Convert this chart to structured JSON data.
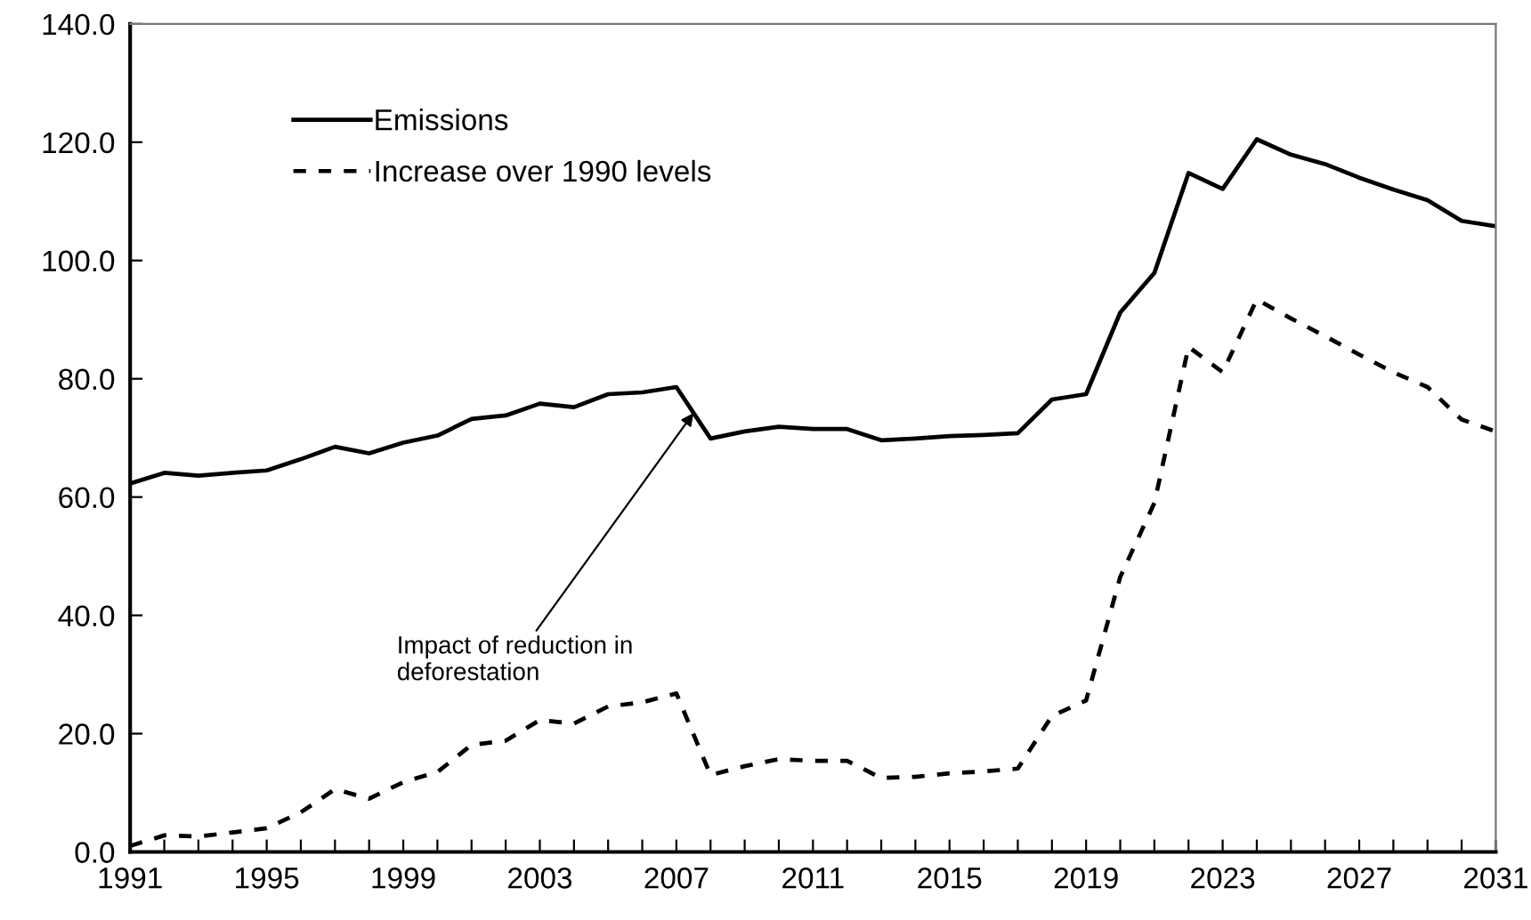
{
  "chart_data": {
    "type": "line",
    "x": [
      1991,
      1992,
      1993,
      1994,
      1995,
      1996,
      1997,
      1998,
      1999,
      2000,
      2001,
      2002,
      2003,
      2004,
      2005,
      2006,
      2007,
      2008,
      2009,
      2010,
      2011,
      2012,
      2013,
      2014,
      2015,
      2016,
      2017,
      2018,
      2019,
      2020,
      2021,
      2022,
      2023,
      2024,
      2025,
      2026,
      2027,
      2028,
      2029,
      2030,
      2031
    ],
    "series": [
      {
        "name": "Emissions",
        "color": "#000000",
        "line_style": "solid",
        "values": [
          62.3,
          64.1,
          63.6,
          64.1,
          64.5,
          66.4,
          68.5,
          67.4,
          69.2,
          70.4,
          73.2,
          73.8,
          75.8,
          75.2,
          77.4,
          77.7,
          78.6,
          69.9,
          71.1,
          71.9,
          71.5,
          71.5,
          69.6,
          69.9,
          70.3,
          70.5,
          70.8,
          76.5,
          77.4,
          91.2,
          97.9,
          114.8,
          112.1,
          120.5,
          117.9,
          116.3,
          114.0,
          112.0,
          110.2,
          106.7,
          105.8
        ]
      },
      {
        "name": "Increase over 1990 levels",
        "color": "#000000",
        "line_style": "dashed",
        "values": [
          1.0,
          2.8,
          2.6,
          3.3,
          4.0,
          6.7,
          10.6,
          9.0,
          11.8,
          13.5,
          18.1,
          18.8,
          22.3,
          21.7,
          24.6,
          25.3,
          26.8,
          13.0,
          14.5,
          15.7,
          15.4,
          15.4,
          12.5,
          12.7,
          13.3,
          13.6,
          14.1,
          23.0,
          25.6,
          46.5,
          59.0,
          85.4,
          81.1,
          93.4,
          90.2,
          87.2,
          84.1,
          81.1,
          78.6,
          73.1,
          71.1
        ]
      }
    ],
    "xlim": [
      1991,
      2031
    ],
    "xticks": [
      1991,
      {
        "value": 1992,
        "label": null
      },
      {
        "value": 1993,
        "label": null
      },
      {
        "value": 1994,
        "label": null
      },
      1995,
      {
        "value": 1996,
        "label": null
      },
      {
        "value": 1997,
        "label": null
      },
      {
        "value": 1998,
        "label": null
      },
      1999,
      {
        "value": 2000,
        "label": null
      },
      {
        "value": 2001,
        "label": null
      },
      {
        "value": 2002,
        "label": null
      },
      2003,
      {
        "value": 2004,
        "label": null
      },
      {
        "value": 2005,
        "label": null
      },
      {
        "value": 2006,
        "label": null
      },
      2007,
      {
        "value": 2008,
        "label": null
      },
      {
        "value": 2009,
        "label": null
      },
      {
        "value": 2010,
        "label": null
      },
      2011,
      {
        "value": 2012,
        "label": null
      },
      {
        "value": 2013,
        "label": null
      },
      {
        "value": 2014,
        "label": null
      },
      2015,
      {
        "value": 2016,
        "label": null
      },
      {
        "value": 2017,
        "label": null
      },
      {
        "value": 2018,
        "label": null
      },
      2019,
      {
        "value": 2020,
        "label": null
      },
      {
        "value": 2021,
        "label": null
      },
      {
        "value": 2022,
        "label": null
      },
      2023,
      {
        "value": 2024,
        "label": null
      },
      {
        "value": 2025,
        "label": null
      },
      {
        "value": 2026,
        "label": null
      },
      2027,
      {
        "value": 2028,
        "label": null
      },
      {
        "value": 2029,
        "label": null
      },
      {
        "value": 2030,
        "label": null
      },
      2031
    ],
    "ylim": [
      0,
      140
    ],
    "yticks": [
      {
        "value": 0,
        "label": "0.0"
      },
      {
        "value": 20,
        "label": "20.0"
      },
      {
        "value": 40,
        "label": "40.0"
      },
      {
        "value": 60,
        "label": "60.0"
      },
      {
        "value": 80,
        "label": "80.0"
      },
      {
        "value": 100,
        "label": "100.0"
      },
      {
        "value": 120,
        "label": "120.0"
      },
      {
        "value": 140,
        "label": "140.0"
      }
    ],
    "annotations": [
      {
        "text": "Impact of reduction in\ndeforestation",
        "x": 2007.5,
        "y": 74.2
      }
    ],
    "legend": "top left",
    "grid": false,
    "marker": "none"
  }
}
